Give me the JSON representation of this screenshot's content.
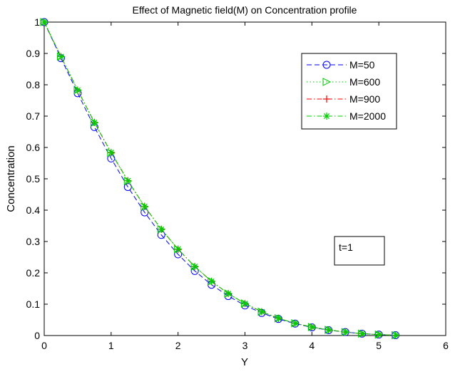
{
  "chart_data": {
    "type": "line",
    "title": "Effect of Magnetic field(M) on Concentration profile",
    "xlabel": "Y",
    "ylabel": "Concentration",
    "xlim": [
      0,
      6
    ],
    "ylim": [
      0,
      1
    ],
    "x_ticks": [
      "0",
      "1",
      "2",
      "3",
      "4",
      "5",
      "6"
    ],
    "y_ticks": [
      "0",
      "0.1",
      "0.2",
      "0.3",
      "0.4",
      "0.5",
      "0.6",
      "0.7",
      "0.8",
      "0.9",
      "1"
    ],
    "grid": false,
    "legend_position": "top-right",
    "annotation": "t=1",
    "x": [
      0,
      0.25,
      0.5,
      0.75,
      1.0,
      1.25,
      1.5,
      1.75,
      2.0,
      2.25,
      2.5,
      2.75,
      3.0,
      3.25,
      3.5,
      3.75,
      4.0,
      4.25,
      4.5,
      4.75,
      5.0,
      5.25
    ],
    "series": [
      {
        "name": "M=50",
        "color": "#0000ff",
        "line_style": "dashed",
        "marker": "circle",
        "values": [
          1.0,
          0.885,
          0.773,
          0.665,
          0.565,
          0.474,
          0.393,
          0.321,
          0.259,
          0.206,
          0.162,
          0.126,
          0.096,
          0.072,
          0.053,
          0.038,
          0.026,
          0.017,
          0.011,
          0.006,
          0.003,
          0.001
        ]
      },
      {
        "name": "M=600",
        "color": "#00cc00",
        "line_style": "dotted",
        "marker": "triangle-right",
        "values": [
          1.0,
          0.89,
          0.783,
          0.679,
          0.583,
          0.493,
          0.411,
          0.339,
          0.275,
          0.22,
          0.173,
          0.134,
          0.102,
          0.076,
          0.055,
          0.039,
          0.027,
          0.018,
          0.011,
          0.006,
          0.003,
          0.001
        ]
      },
      {
        "name": "M=900",
        "color": "#ff0000",
        "line_style": "dashdot",
        "marker": "plus",
        "values": [
          1.0,
          0.89,
          0.783,
          0.68,
          0.583,
          0.494,
          0.412,
          0.339,
          0.275,
          0.22,
          0.173,
          0.134,
          0.102,
          0.076,
          0.055,
          0.039,
          0.027,
          0.018,
          0.011,
          0.006,
          0.003,
          0.001
        ]
      },
      {
        "name": "M=2000",
        "color": "#00cc00",
        "line_style": "dashdot",
        "marker": "asterisk",
        "values": [
          1.0,
          0.89,
          0.783,
          0.68,
          0.584,
          0.494,
          0.412,
          0.339,
          0.276,
          0.22,
          0.173,
          0.134,
          0.102,
          0.076,
          0.055,
          0.039,
          0.027,
          0.018,
          0.011,
          0.006,
          0.003,
          0.001
        ]
      }
    ]
  }
}
